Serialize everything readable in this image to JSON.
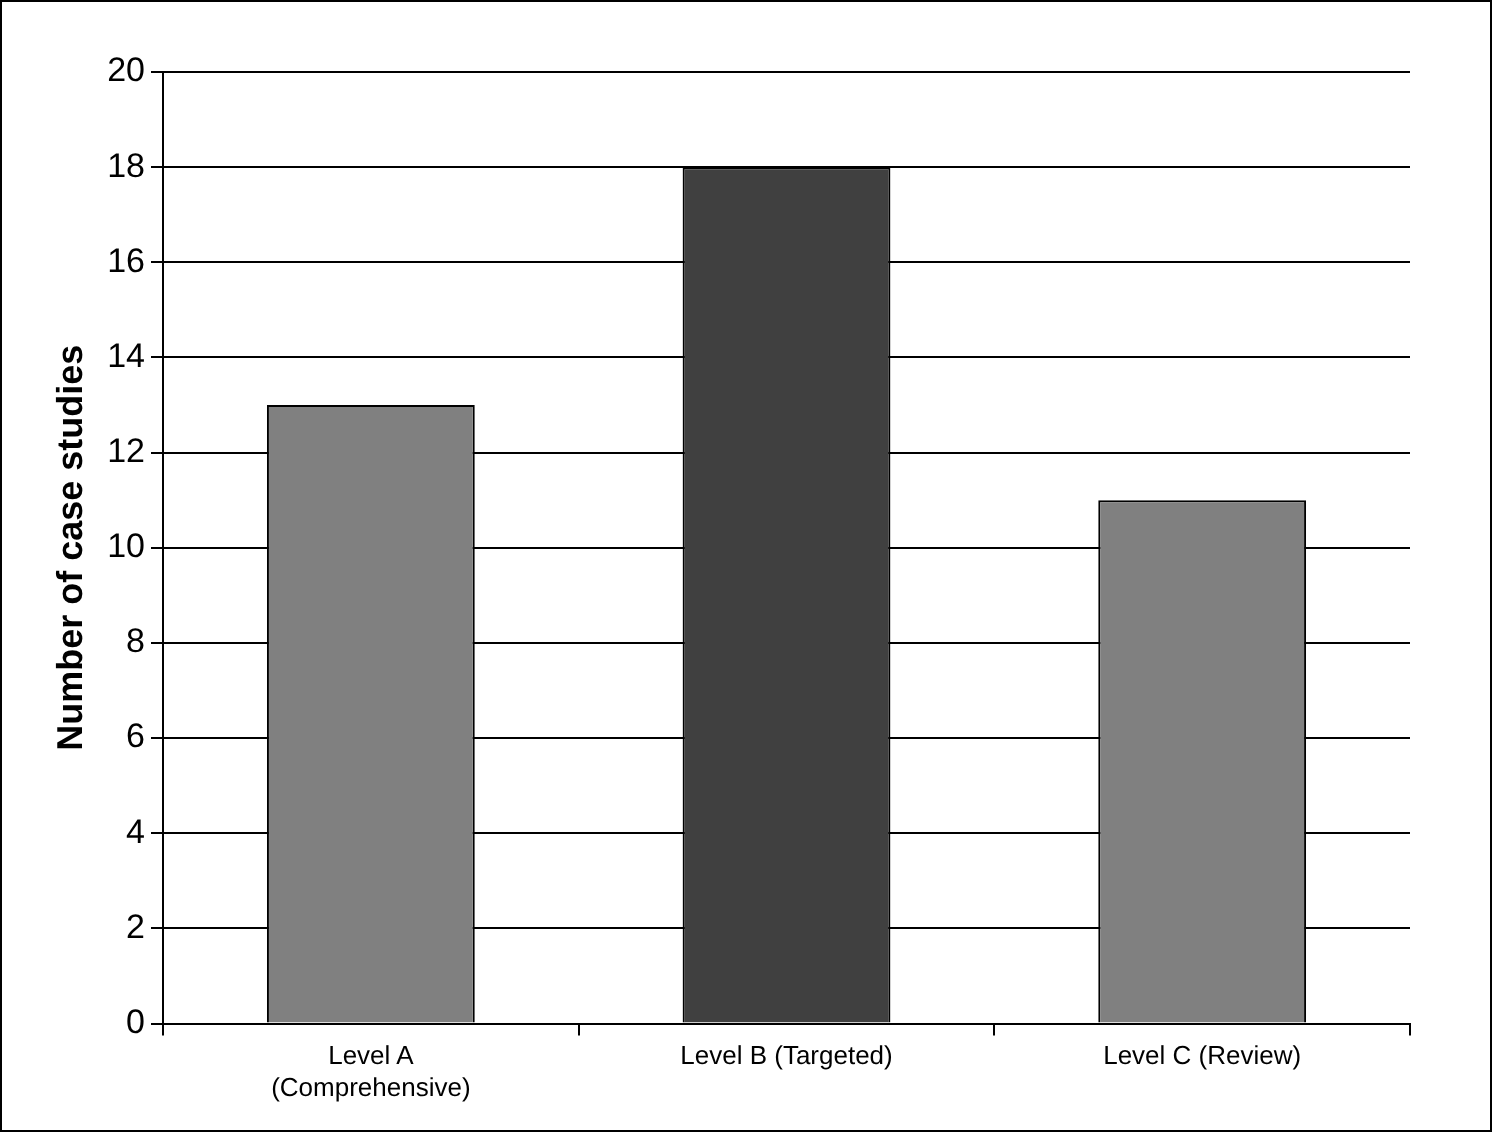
{
  "chart_data": {
    "type": "bar",
    "ylabel": "Number of case studies",
    "categories": [
      "Level A (Comprehensive)",
      "Level B (Targeted)",
      "Level C (Review)"
    ],
    "values": [
      13,
      18,
      11
    ],
    "colors": [
      "#808080",
      "#404040",
      "#808080"
    ],
    "ylim": [
      0,
      20
    ],
    "yticks": [
      0,
      2,
      4,
      6,
      8,
      10,
      12,
      14,
      16,
      18,
      20
    ],
    "grid": "y",
    "legend": false
  }
}
